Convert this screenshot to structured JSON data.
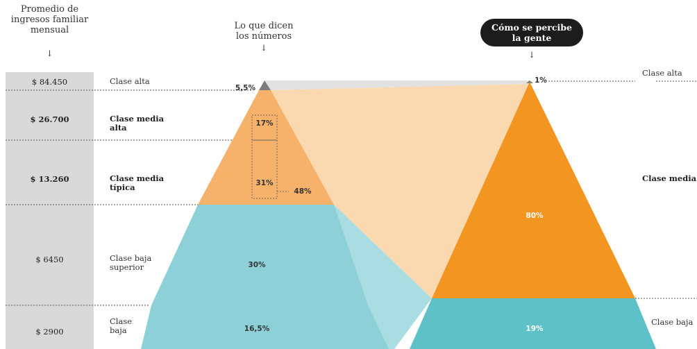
{
  "headers": {
    "income": [
      "Promedio de",
      "ingresos familiar",
      "mensual"
    ],
    "numbers": [
      "Lo que dicen",
      "los números"
    ],
    "perception": [
      "Cómo se percibe",
      "la gente"
    ],
    "arrow": "↓"
  },
  "rows": [
    {
      "income": "$ 84.450",
      "label": "Clase alta",
      "bold": false
    },
    {
      "income": "$ 26.700",
      "label": "Clase media\nalta",
      "bold": true
    },
    {
      "income": "$ 13.260",
      "label": "Clase media\ntípica",
      "bold": true
    },
    {
      "income": "$ 6450",
      "label": "Clase baja\nsuperior",
      "bold": false
    },
    {
      "income": "$ 2900",
      "label": "Clase\nbaja",
      "bold": false
    }
  ],
  "numbers_pyramid": {
    "top": "5,5%",
    "media_alta": "17%",
    "media_tipica": "31%",
    "media_total": "48%",
    "baja_superior": "30%",
    "baja": "16,5%"
  },
  "perception_pyramid": {
    "alta": "1%",
    "media": "80%",
    "baja": "19%",
    "label_alta": "Clase alta",
    "label_media": "Clase media",
    "label_baja": "Clase baja"
  },
  "colors": {
    "income_bg": "#d9d9d9",
    "top_gray": "#7b7b7b",
    "light_gray": "#e1e1e1",
    "orange_light": "#f6b16a",
    "orange_pale": "#fbd9b0",
    "orange_strong": "#f39521",
    "teal": "#8dd0d8",
    "teal_pale": "#a9dde1",
    "teal_strong": "#5fc1c8"
  }
}
